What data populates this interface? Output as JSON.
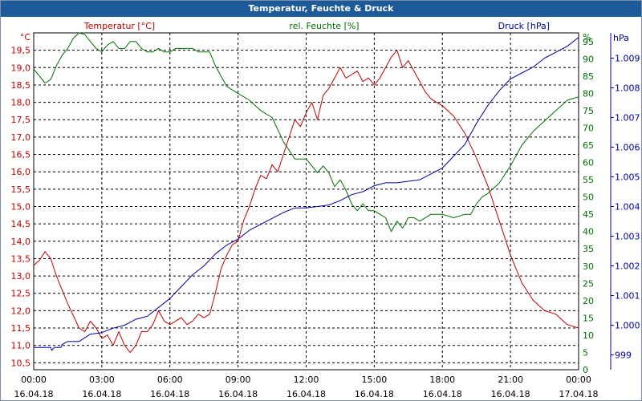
{
  "window": {
    "title": "Temperatur, Feuchte & Druck"
  },
  "colors": {
    "temperature": "#c00000",
    "humidity": "#007000",
    "pressure": "#00009c",
    "grid": "#000000",
    "titlebar": "#1c5a99"
  },
  "chart_data": {
    "type": "line",
    "title": "Temperatur, Feuchte & Druck",
    "x_ticks": [
      {
        "hours": 0,
        "time": "00:00",
        "date": "16.04.18"
      },
      {
        "hours": 3,
        "time": "03:00",
        "date": "16.04.18"
      },
      {
        "hours": 6,
        "time": "06:00",
        "date": "16.04.18"
      },
      {
        "hours": 9,
        "time": "09:00",
        "date": "16.04.18"
      },
      {
        "hours": 12,
        "time": "12:00",
        "date": "16.04.18"
      },
      {
        "hours": 15,
        "time": "15:00",
        "date": "16.04.18"
      },
      {
        "hours": 18,
        "time": "18:00",
        "date": "16.04.18"
      },
      {
        "hours": 21,
        "time": "21:00",
        "date": "16.04.18"
      },
      {
        "hours": 24,
        "time": "00:00",
        "date": "17.04.18"
      }
    ],
    "x_range": [
      0,
      24
    ],
    "axes": {
      "temperature": {
        "unit": "°C",
        "label": "Temperatur [°C]",
        "range": [
          10.3,
          20.0
        ],
        "ticks": [
          "10,5",
          "11,0",
          "11,5",
          "12,0",
          "12,5",
          "13,0",
          "13,5",
          "14,0",
          "14,5",
          "15,0",
          "15,5",
          "16,0",
          "16,5",
          "17,0",
          "17,5",
          "18,0",
          "18,5",
          "19,0",
          "19,5"
        ]
      },
      "humidity": {
        "unit": "%",
        "label": "rel. Feuchte [%]",
        "range": [
          0,
          97.5
        ],
        "ticks": [
          "0",
          "5",
          "10",
          "15",
          "20",
          "25",
          "30",
          "35",
          "40",
          "45",
          "50",
          "55",
          "60",
          "65",
          "70",
          "75",
          "80",
          "85",
          "90",
          "95"
        ]
      },
      "pressure": {
        "unit": "hPa",
        "label": "Druck [hPa]",
        "range": [
          998.5,
          1009.85
        ],
        "ticks": [
          "999",
          "1.000",
          "1.001",
          "1.002",
          "1.003",
          "1.004",
          "1.005",
          "1.006",
          "1.007",
          "1.008",
          "1.009"
        ]
      }
    },
    "series": [
      {
        "name": "Temperatur [°C]",
        "axis": "temperature",
        "points": [
          [
            0,
            13.3
          ],
          [
            0.25,
            13.45
          ],
          [
            0.5,
            13.7
          ],
          [
            0.75,
            13.5
          ],
          [
            1,
            13.0
          ],
          [
            1.5,
            12.2
          ],
          [
            2,
            11.5
          ],
          [
            2.25,
            11.4
          ],
          [
            2.5,
            11.7
          ],
          [
            2.75,
            11.5
          ],
          [
            3,
            11.2
          ],
          [
            3.25,
            11.3
          ],
          [
            3.5,
            11.0
          ],
          [
            3.75,
            11.4
          ],
          [
            4,
            11.0
          ],
          [
            4.25,
            10.8
          ],
          [
            4.5,
            11.0
          ],
          [
            4.75,
            11.4
          ],
          [
            5,
            11.4
          ],
          [
            5.25,
            11.6
          ],
          [
            5.5,
            12.0
          ],
          [
            5.75,
            11.7
          ],
          [
            6,
            11.6
          ],
          [
            6.25,
            11.7
          ],
          [
            6.5,
            11.8
          ],
          [
            6.75,
            11.6
          ],
          [
            7,
            11.7
          ],
          [
            7.25,
            11.9
          ],
          [
            7.5,
            11.8
          ],
          [
            7.75,
            11.9
          ],
          [
            8,
            12.5
          ],
          [
            8.25,
            13.2
          ],
          [
            8.5,
            13.6
          ],
          [
            8.75,
            13.9
          ],
          [
            9,
            14.0
          ],
          [
            9.25,
            14.6
          ],
          [
            9.5,
            15.0
          ],
          [
            9.75,
            15.5
          ],
          [
            10,
            15.9
          ],
          [
            10.25,
            15.8
          ],
          [
            10.5,
            16.2
          ],
          [
            10.75,
            16.0
          ],
          [
            11,
            16.5
          ],
          [
            11.25,
            17.0
          ],
          [
            11.5,
            17.5
          ],
          [
            11.75,
            17.3
          ],
          [
            12,
            17.7
          ],
          [
            12.25,
            18.0
          ],
          [
            12.5,
            17.5
          ],
          [
            12.75,
            18.2
          ],
          [
            13,
            18.4
          ],
          [
            13.25,
            18.7
          ],
          [
            13.5,
            19.0
          ],
          [
            13.75,
            18.7
          ],
          [
            14,
            18.8
          ],
          [
            14.25,
            18.9
          ],
          [
            14.5,
            18.6
          ],
          [
            14.75,
            18.7
          ],
          [
            15,
            18.5
          ],
          [
            15.25,
            18.7
          ],
          [
            15.5,
            19.0
          ],
          [
            15.75,
            19.3
          ],
          [
            16,
            19.5
          ],
          [
            16.25,
            19.0
          ],
          [
            16.5,
            19.2
          ],
          [
            16.75,
            18.9
          ],
          [
            17,
            18.6
          ],
          [
            17.25,
            18.3
          ],
          [
            17.5,
            18.1
          ],
          [
            17.75,
            18.0
          ],
          [
            18,
            17.9
          ],
          [
            18.5,
            17.6
          ],
          [
            19,
            17.1
          ],
          [
            19.5,
            16.4
          ],
          [
            20,
            15.6
          ],
          [
            20.5,
            14.6
          ],
          [
            21,
            13.6
          ],
          [
            21.5,
            12.8
          ],
          [
            22,
            12.3
          ],
          [
            22.5,
            12.0
          ],
          [
            23,
            11.9
          ],
          [
            23.5,
            11.6
          ],
          [
            24,
            11.5
          ]
        ]
      },
      {
        "name": "rel. Feuchte [%]",
        "axis": "humidity",
        "points": [
          [
            0,
            87
          ],
          [
            0.25,
            85
          ],
          [
            0.5,
            83
          ],
          [
            0.75,
            84
          ],
          [
            1,
            88
          ],
          [
            1.25,
            91
          ],
          [
            1.5,
            93
          ],
          [
            1.75,
            96
          ],
          [
            2,
            98
          ],
          [
            2.25,
            97
          ],
          [
            2.5,
            95
          ],
          [
            2.75,
            93
          ],
          [
            3,
            92
          ],
          [
            3.25,
            94
          ],
          [
            3.5,
            95
          ],
          [
            3.75,
            93
          ],
          [
            4,
            93
          ],
          [
            4.25,
            95
          ],
          [
            4.5,
            95
          ],
          [
            4.75,
            93
          ],
          [
            5,
            92
          ],
          [
            5.25,
            92
          ],
          [
            5.5,
            93
          ],
          [
            5.75,
            92
          ],
          [
            6,
            92
          ],
          [
            6.25,
            93
          ],
          [
            6.5,
            93
          ],
          [
            6.75,
            93
          ],
          [
            7,
            93
          ],
          [
            7.25,
            92
          ],
          [
            7.5,
            92
          ],
          [
            7.75,
            92
          ],
          [
            8,
            88
          ],
          [
            8.5,
            82
          ],
          [
            9,
            80
          ],
          [
            9.5,
            78
          ],
          [
            10,
            75
          ],
          [
            10.5,
            73
          ],
          [
            11,
            66
          ],
          [
            11.5,
            61
          ],
          [
            12,
            61
          ],
          [
            12.25,
            59
          ],
          [
            12.5,
            57
          ],
          [
            12.75,
            59
          ],
          [
            13,
            57
          ],
          [
            13.25,
            53
          ],
          [
            13.5,
            55
          ],
          [
            13.75,
            52
          ],
          [
            14,
            48
          ],
          [
            14.25,
            46
          ],
          [
            14.5,
            48
          ],
          [
            14.75,
            46
          ],
          [
            15,
            46
          ],
          [
            15.25,
            45
          ],
          [
            15.5,
            44
          ],
          [
            15.75,
            40
          ],
          [
            16,
            43
          ],
          [
            16.25,
            41
          ],
          [
            16.5,
            44
          ],
          [
            16.75,
            44
          ],
          [
            17,
            43
          ],
          [
            17.5,
            45
          ],
          [
            18,
            45
          ],
          [
            18.5,
            44
          ],
          [
            19,
            45
          ],
          [
            19.25,
            45
          ],
          [
            19.5,
            48
          ],
          [
            19.75,
            50
          ],
          [
            20,
            51
          ],
          [
            20.5,
            54
          ],
          [
            21,
            59
          ],
          [
            21.5,
            65
          ],
          [
            22,
            69
          ],
          [
            22.5,
            72
          ],
          [
            23,
            75
          ],
          [
            23.5,
            78
          ],
          [
            24,
            79
          ]
        ]
      },
      {
        "name": "Druck [hPa]",
        "axis": "pressure",
        "points": [
          [
            0,
            999.25
          ],
          [
            0.75,
            999.25
          ],
          [
            0.8,
            999.15
          ],
          [
            0.9,
            999.25
          ],
          [
            1.2,
            999.25
          ],
          [
            1.25,
            999.35
          ],
          [
            1.5,
            999.45
          ],
          [
            2,
            999.45
          ],
          [
            2.5,
            999.7
          ],
          [
            3,
            999.75
          ],
          [
            3.5,
            999.9
          ],
          [
            4,
            1000.0
          ],
          [
            4.5,
            1000.2
          ],
          [
            5,
            1000.3
          ],
          [
            5.5,
            1000.6
          ],
          [
            6,
            1000.9
          ],
          [
            6.5,
            1001.3
          ],
          [
            7,
            1001.7
          ],
          [
            7.5,
            1002.0
          ],
          [
            8,
            1002.4
          ],
          [
            8.5,
            1002.7
          ],
          [
            9,
            1002.9
          ],
          [
            9.5,
            1003.2
          ],
          [
            10,
            1003.4
          ],
          [
            10.5,
            1003.6
          ],
          [
            11,
            1003.8
          ],
          [
            11.5,
            1003.95
          ],
          [
            12,
            1003.95
          ],
          [
            12.5,
            1004.0
          ],
          [
            13,
            1004.05
          ],
          [
            13.5,
            1004.2
          ],
          [
            14,
            1004.4
          ],
          [
            14.5,
            1004.5
          ],
          [
            15,
            1004.7
          ],
          [
            15.5,
            1004.8
          ],
          [
            16,
            1004.8
          ],
          [
            16.5,
            1004.85
          ],
          [
            17,
            1004.9
          ],
          [
            17.5,
            1005.1
          ],
          [
            18,
            1005.3
          ],
          [
            18.5,
            1005.7
          ],
          [
            19,
            1006.1
          ],
          [
            19.5,
            1006.8
          ],
          [
            20,
            1007.4
          ],
          [
            20.5,
            1007.9
          ],
          [
            21,
            1008.3
          ],
          [
            21.5,
            1008.5
          ],
          [
            22,
            1008.7
          ],
          [
            22.5,
            1009.0
          ],
          [
            23,
            1009.2
          ],
          [
            23.5,
            1009.4
          ],
          [
            24,
            1009.7
          ]
        ]
      }
    ]
  }
}
